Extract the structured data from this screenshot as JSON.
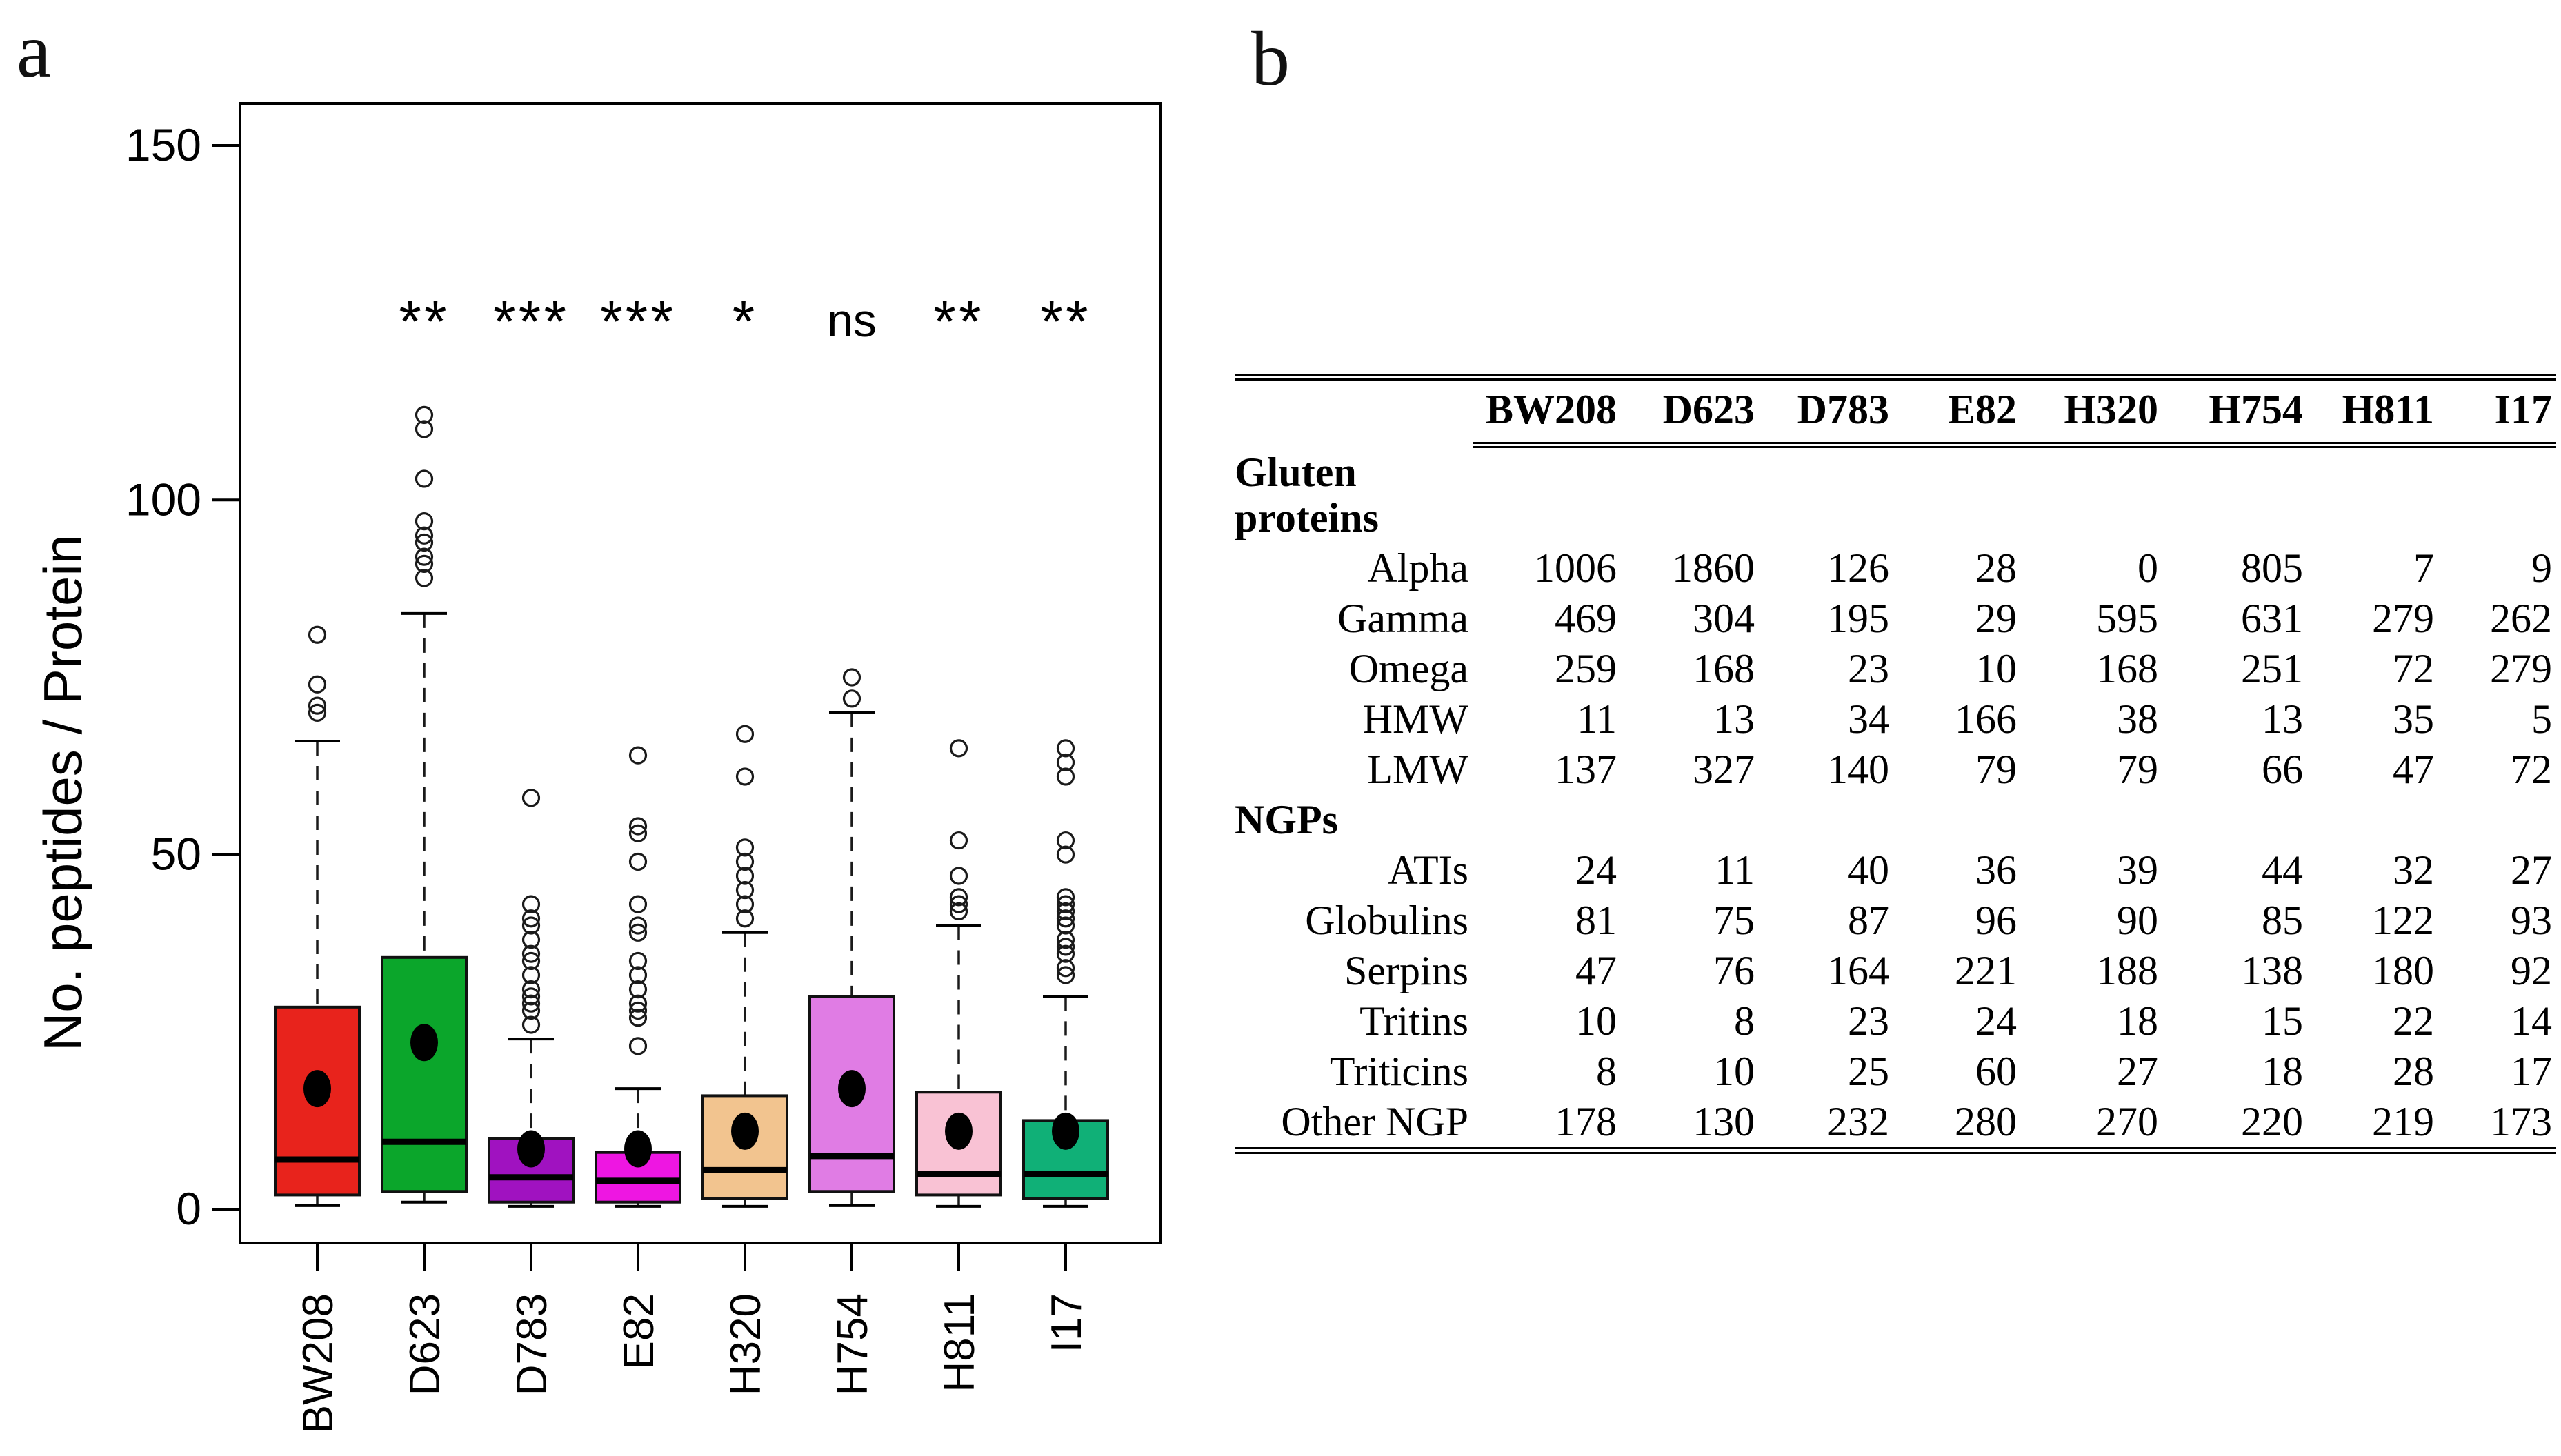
{
  "panels": {
    "a": "a",
    "b": "b"
  },
  "chart_data": [
    {
      "type": "box",
      "title": "",
      "xlabel": "",
      "ylabel": "No. peptides / Protein",
      "ylim": [
        0,
        150
      ],
      "yticks": [
        0,
        50,
        100,
        150
      ],
      "grid": false,
      "categories": [
        "BW208",
        "D623",
        "D783",
        "E82",
        "H320",
        "H754",
        "H811",
        "I17"
      ],
      "significance_labels": [
        "",
        "**",
        "***",
        "***",
        "*",
        "ns",
        "**",
        "**"
      ],
      "significance_y": 128,
      "groups": [
        {
          "name": "BW208",
          "color": "#e8231c",
          "q1": 2,
          "median": 7,
          "q3": 28.5,
          "whisker_low": 0.5,
          "whisker_high": 66,
          "mean": 17,
          "outliers": [
            70,
            71,
            74,
            81
          ],
          "significance": ""
        },
        {
          "name": "D623",
          "color": "#0ba62b",
          "q1": 2.5,
          "median": 9.5,
          "q3": 35.5,
          "whisker_low": 1,
          "whisker_high": 84,
          "mean": 23.5,
          "outliers": [
            89,
            91,
            92,
            94,
            95,
            97,
            103,
            110,
            112
          ],
          "significance": "**"
        },
        {
          "name": "D783",
          "color": "#a012c0",
          "q1": 1,
          "median": 4.5,
          "q3": 10,
          "whisker_low": 0.4,
          "whisker_high": 24,
          "mean": 8.5,
          "outliers": [
            26,
            28,
            29,
            30,
            31,
            33,
            35,
            36,
            38,
            40,
            41,
            43,
            58
          ],
          "significance": "***"
        },
        {
          "name": "E82",
          "color": "#ee16e2",
          "q1": 1,
          "median": 4,
          "q3": 8,
          "whisker_low": 0.4,
          "whisker_high": 17,
          "mean": 8.5,
          "outliers": [
            23,
            27,
            28,
            29,
            31,
            33,
            35,
            39,
            40,
            43,
            49,
            53,
            54,
            64
          ],
          "significance": "***"
        },
        {
          "name": "H320",
          "color": "#f2c48f",
          "q1": 1.5,
          "median": 5.5,
          "q3": 16,
          "whisker_low": 0.4,
          "whisker_high": 39,
          "mean": 11,
          "outliers": [
            41,
            43,
            45,
            47,
            49,
            51,
            61,
            67
          ],
          "significance": "*"
        },
        {
          "name": "H754",
          "color": "#e07ce4",
          "q1": 2.5,
          "median": 7.5,
          "q3": 30,
          "whisker_low": 0.5,
          "whisker_high": 70,
          "mean": 17,
          "outliers": [
            72,
            75
          ],
          "significance": "ns"
        },
        {
          "name": "H811",
          "color": "#f9c2d4",
          "q1": 2,
          "median": 5,
          "q3": 16.5,
          "whisker_low": 0.4,
          "whisker_high": 40,
          "mean": 11,
          "outliers": [
            42,
            43,
            44,
            47,
            52,
            65
          ],
          "significance": "**"
        },
        {
          "name": "I17",
          "color": "#10b077",
          "q1": 1.5,
          "median": 5,
          "q3": 12.5,
          "whisker_low": 0.4,
          "whisker_high": 30,
          "mean": 11,
          "outliers": [
            33,
            34,
            36,
            37,
            38,
            40,
            41,
            42,
            43,
            44,
            50,
            52,
            61,
            63,
            65
          ],
          "significance": "**"
        }
      ]
    },
    {
      "type": "table",
      "columns": [
        "BW208",
        "D623",
        "D783",
        "E82",
        "H320",
        "H754",
        "H811",
        "I17"
      ],
      "sections": [
        {
          "name": "Gluten proteins",
          "rows": [
            {
              "label": "Alpha",
              "values": [
                1006,
                1860,
                126,
                28,
                0,
                805,
                7,
                9
              ]
            },
            {
              "label": "Gamma",
              "values": [
                469,
                304,
                195,
                29,
                595,
                631,
                279,
                262
              ]
            },
            {
              "label": "Omega",
              "values": [
                259,
                168,
                23,
                10,
                168,
                251,
                72,
                279
              ]
            },
            {
              "label": "HMW",
              "values": [
                11,
                13,
                34,
                166,
                38,
                13,
                35,
                5
              ]
            },
            {
              "label": "LMW",
              "values": [
                137,
                327,
                140,
                79,
                79,
                66,
                47,
                72
              ]
            }
          ]
        },
        {
          "name": "NGPs",
          "rows": [
            {
              "label": "ATIs",
              "values": [
                24,
                11,
                40,
                36,
                39,
                44,
                32,
                27
              ]
            },
            {
              "label": "Globulins",
              "values": [
                81,
                75,
                87,
                96,
                90,
                85,
                122,
                93
              ]
            },
            {
              "label": "Serpins",
              "values": [
                47,
                76,
                164,
                221,
                188,
                138,
                180,
                92
              ]
            },
            {
              "label": "Tritins",
              "values": [
                10,
                8,
                23,
                24,
                18,
                15,
                22,
                14
              ]
            },
            {
              "label": "Triticins",
              "values": [
                8,
                10,
                25,
                60,
                27,
                18,
                28,
                17
              ]
            },
            {
              "label": "Other NGP",
              "values": [
                178,
                130,
                232,
                280,
                270,
                220,
                219,
                173
              ]
            }
          ]
        }
      ]
    }
  ]
}
